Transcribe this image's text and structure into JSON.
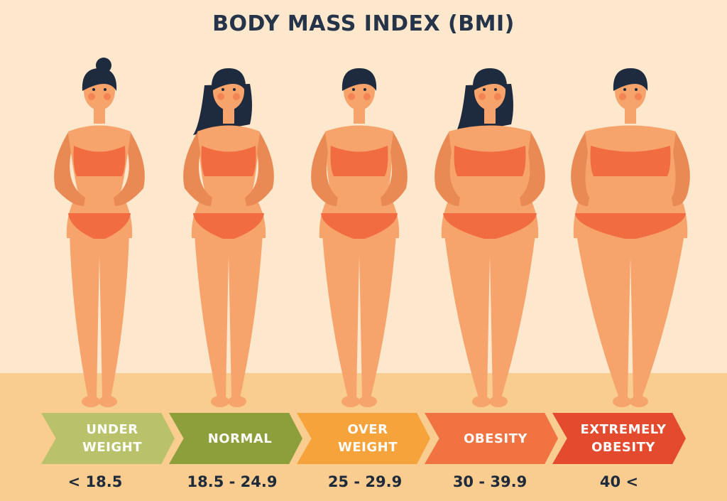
{
  "title": "BODY MASS INDEX (BMI)",
  "categories": [
    {
      "label": "UNDER\nWEIGHT",
      "range": "< 18.5",
      "color": "#b9c26a"
    },
    {
      "label": "NORMAL",
      "range": "18.5 - 24.9",
      "color": "#8d9f3b"
    },
    {
      "label": "OVER\nWEIGHT",
      "range": "25 - 29.9",
      "color": "#f6a33c"
    },
    {
      "label": "OBESITY",
      "range": "30 - 39.9",
      "color": "#f07341"
    },
    {
      "label": "EXTREMELY\nOBESITY",
      "range": "40 <",
      "color": "#e44a2e"
    }
  ],
  "colors": {
    "background": "#fde8cd",
    "floor": "#f9cc8f",
    "skin": "#f7a36c",
    "skin_shade": "#e98a55",
    "swimsuit": "#f26c42",
    "hair": "#1e2a3d",
    "text_dark": "#253449"
  }
}
